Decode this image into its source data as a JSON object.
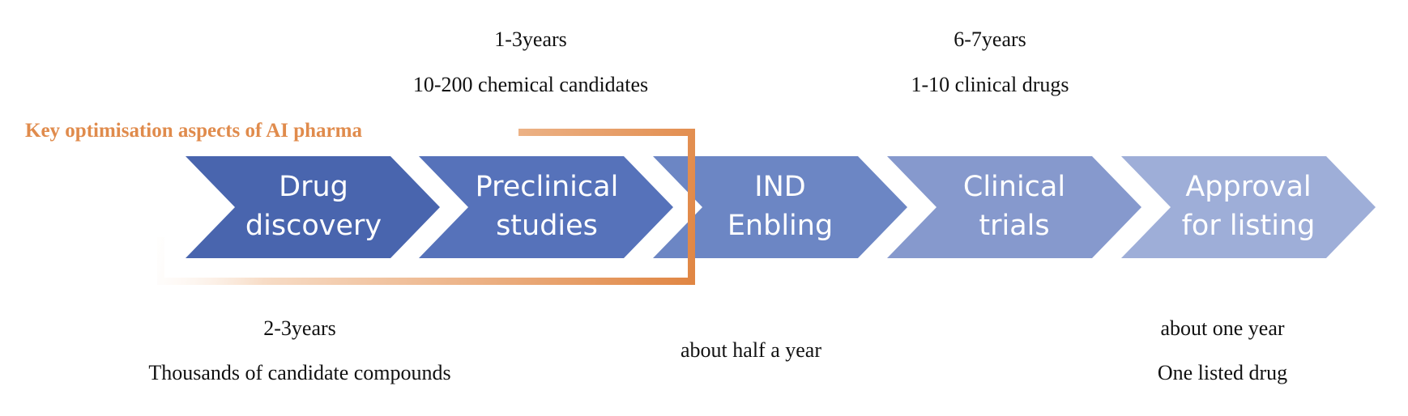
{
  "stages": [
    {
      "line1": "Drug",
      "line2": "discovery",
      "color": "#4965AE"
    },
    {
      "line1": "Preclinical",
      "line2": "studies",
      "color": "#5672BA"
    },
    {
      "line1": "IND",
      "line2": "Enbling",
      "color": "#6C86C4"
    },
    {
      "line1": "Clinical",
      "line2": "trials",
      "color": "#8699CD"
    },
    {
      "line1": "Approval",
      "line2": "for listing",
      "color": "#9EAED8"
    }
  ],
  "highlight": {
    "label": "Key optimisation aspects of AI pharma",
    "color": "#E08B4C"
  },
  "annotations": {
    "drug_discovery": {
      "duration": "2-3years",
      "quantity": "Thousands of candidate compounds"
    },
    "preclinical": {
      "duration": "1-3years",
      "quantity": "10-200 chemical candidates"
    },
    "ind": {
      "duration": "about half a year"
    },
    "clinical": {
      "duration": "6-7years",
      "quantity": "1-10 clinical drugs"
    },
    "approval": {
      "duration": "about one year",
      "quantity": "One listed drug"
    }
  }
}
